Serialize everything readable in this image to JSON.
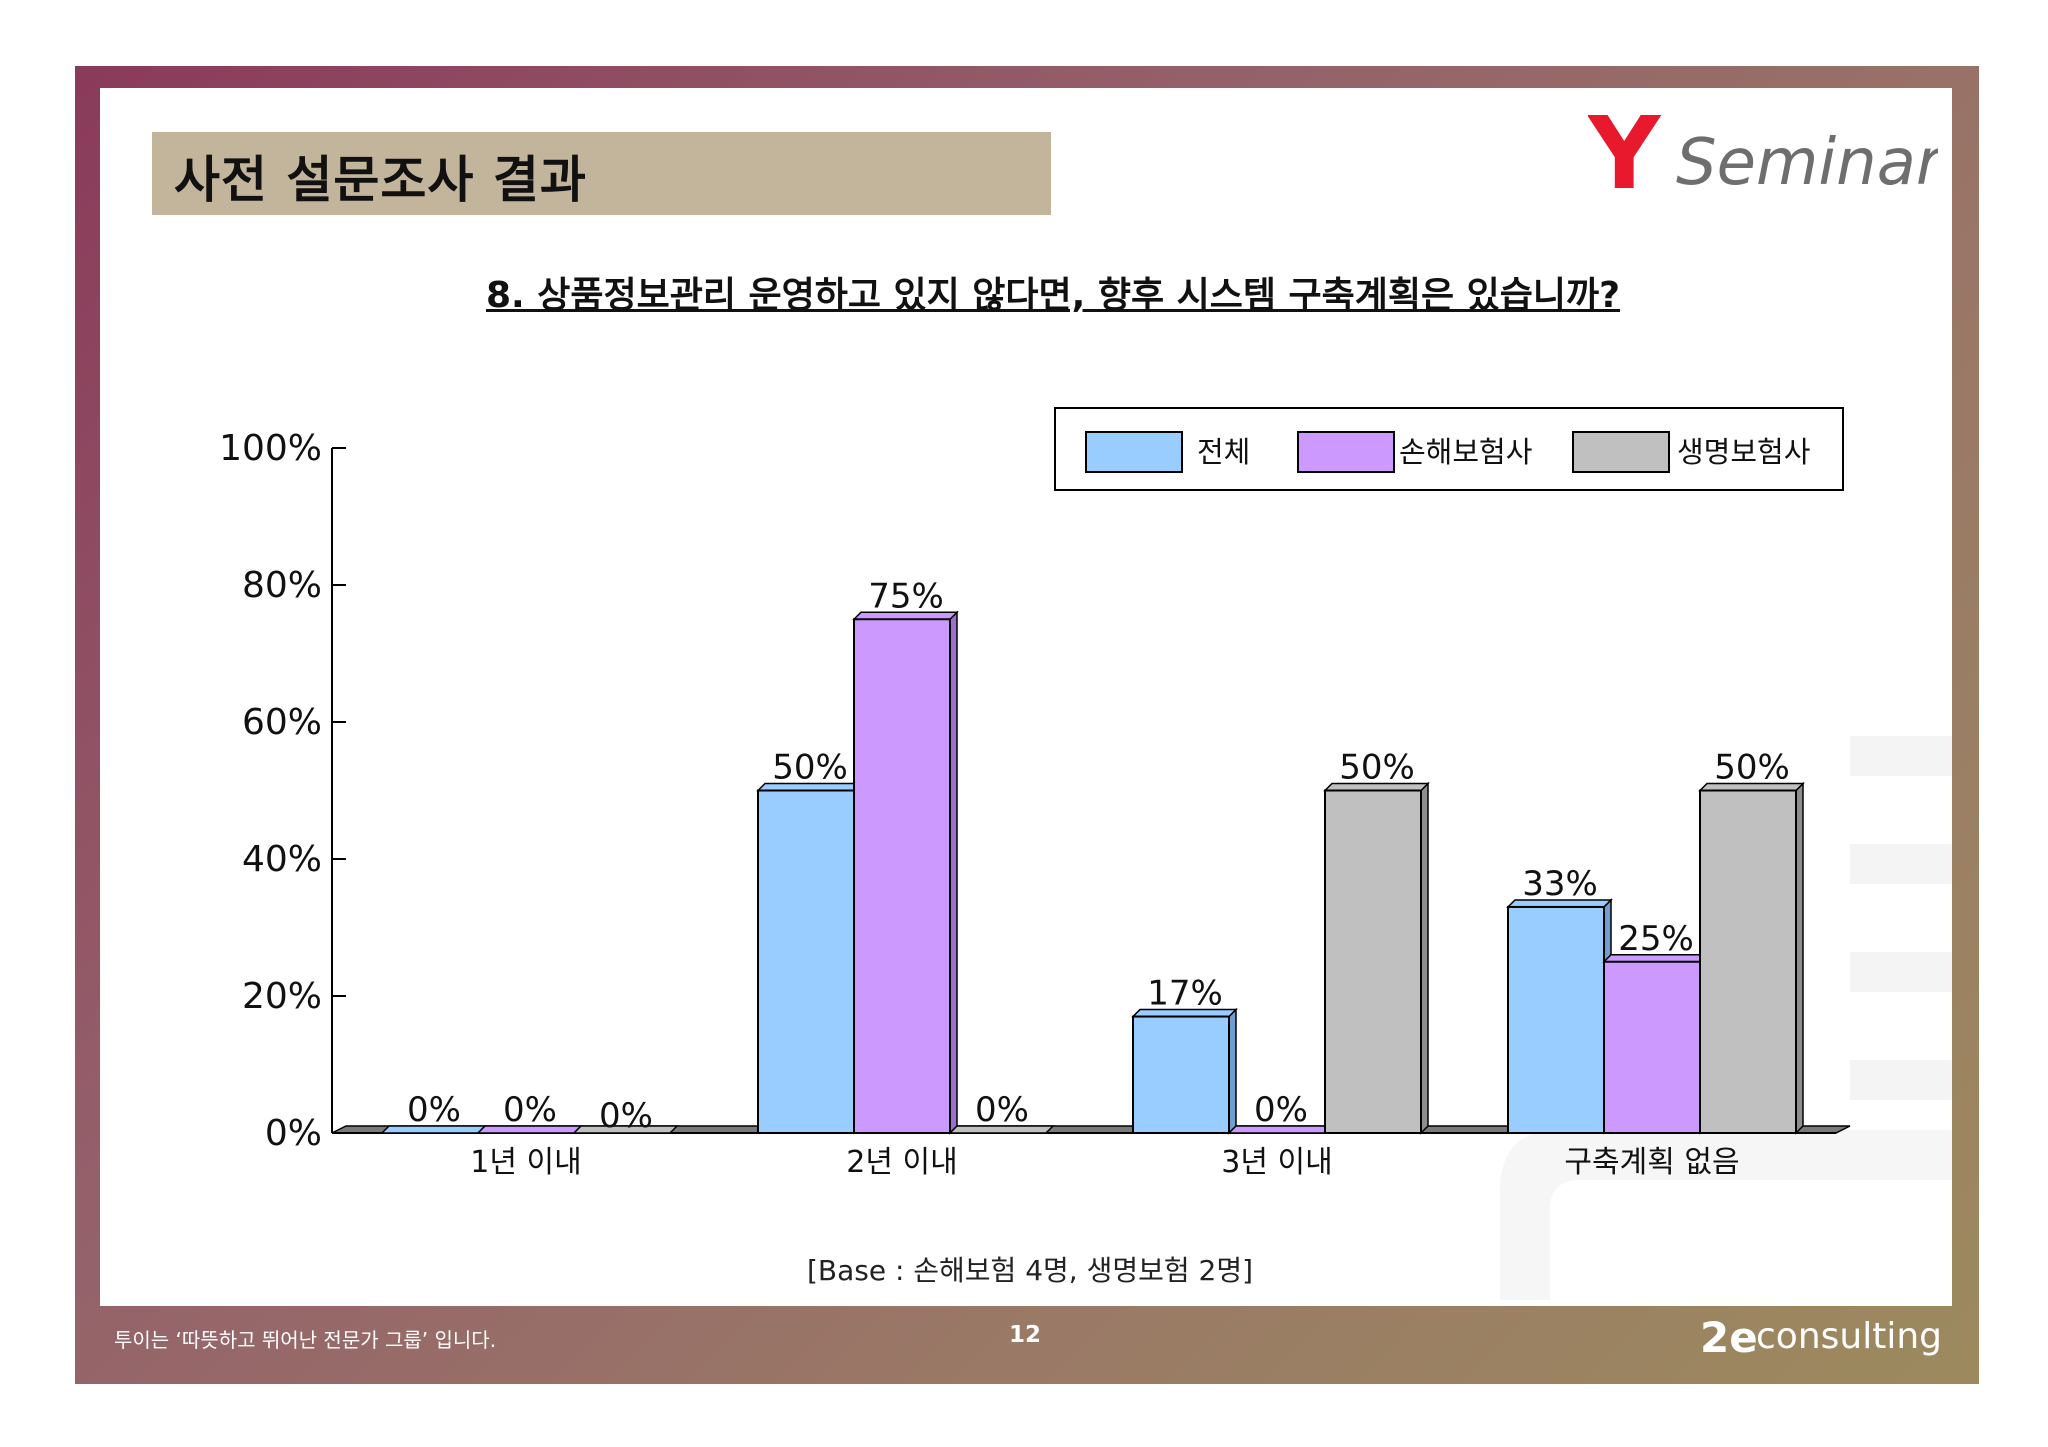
{
  "header": {
    "title": "사전 설문조사 결과",
    "logo_y": "Y",
    "logo_text": "Seminar"
  },
  "question": "8. 상품정보관리 운영하고 있지 않다면, 향후 시스템 구축계획은 있습니까?",
  "note": "[Base :  손해보험 4명, 생명보험  2명]",
  "footer": {
    "slogan": "투이는 ‘따뜻하고 뛰어난 전문가 그룹’ 입니다.",
    "page": "12",
    "logo_mark": "2e",
    "logo_text": "consulting"
  },
  "colors": {
    "accent_red": "#e8192c",
    "total": "#99ccff",
    "nonlife": "#cc99ff",
    "life": "#c0c0c0",
    "title_band": "#c3b59c"
  },
  "chart_data": {
    "type": "bar",
    "title": "8. 상품정보관리 운영하고 있지 않다면, 향후 시스템 구축계획은 있습니까?",
    "xlabel": "",
    "ylabel": "",
    "ylim": [
      0,
      100
    ],
    "yticks": [
      0,
      20,
      40,
      60,
      80,
      100
    ],
    "ytick_labels": [
      "0%",
      "20%",
      "40%",
      "60%",
      "80%",
      "100%"
    ],
    "legend_position": "top-right",
    "categories": [
      "1년 이내",
      "2년 이내",
      "3년 이내",
      "구축계획 없음"
    ],
    "series": [
      {
        "name": "전체",
        "values": [
          0,
          50,
          17,
          33
        ],
        "labels": [
          "0%",
          "50%",
          "17%",
          "33%"
        ]
      },
      {
        "name": "손해보험사",
        "values": [
          0,
          75,
          0,
          25
        ],
        "labels": [
          "0%",
          "75%",
          "0%",
          "25%"
        ]
      },
      {
        "name": "생명보험사",
        "values": [
          0,
          0,
          50,
          50
        ],
        "labels": [
          "0%",
          "0%",
          "50%",
          "50%"
        ]
      }
    ]
  }
}
